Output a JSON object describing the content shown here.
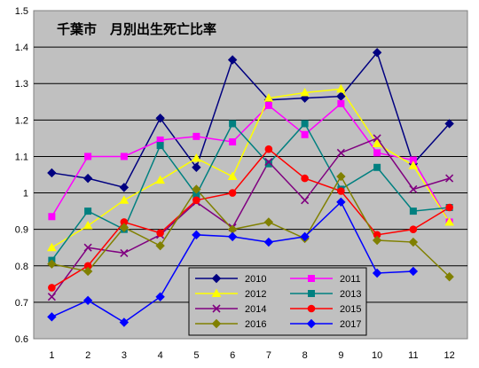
{
  "chart_data": {
    "type": "line",
    "title": "千葉市　月別出生死亡比率",
    "xlabel": "",
    "ylabel": "",
    "x": [
      1,
      2,
      3,
      4,
      5,
      6,
      7,
      8,
      9,
      10,
      11,
      12
    ],
    "x_tick_labels": [
      "1",
      "2",
      "3",
      "4",
      "5",
      "6",
      "7",
      "8",
      "9",
      "10",
      "11",
      "12"
    ],
    "ylim": [
      0.6,
      1.5
    ],
    "y_ticks": [
      0.6,
      0.7,
      0.8,
      0.9,
      1.0,
      1.1,
      1.2,
      1.3,
      1.4,
      1.5
    ],
    "y_tick_labels": [
      "0.6",
      "0.7",
      "0.8",
      "0.9",
      "1",
      "1.1",
      "1.2",
      "1.3",
      "1.4",
      "1.5"
    ],
    "grid": "horizontal",
    "plot_background": "#c0c0c0",
    "legend_position": "bottom-center",
    "series": [
      {
        "name": "2010",
        "color": "#000080",
        "marker": "diamond",
        "values": [
          1.055,
          1.04,
          1.015,
          1.205,
          1.07,
          1.365,
          1.255,
          1.26,
          1.265,
          1.385,
          1.08,
          1.19
        ]
      },
      {
        "name": "2011",
        "color": "#ff00ff",
        "marker": "square",
        "values": [
          0.935,
          1.1,
          1.1,
          1.145,
          1.155,
          1.14,
          1.24,
          1.16,
          1.245,
          1.11,
          1.09,
          0.92
        ]
      },
      {
        "name": "2012",
        "color": "#ffff00",
        "marker": "triangle",
        "values": [
          0.85,
          0.91,
          0.98,
          1.035,
          1.095,
          1.045,
          1.26,
          1.275,
          1.285,
          1.135,
          1.075,
          0.92
        ]
      },
      {
        "name": "2013",
        "color": "#008080",
        "marker": "square",
        "values": [
          0.815,
          0.95,
          0.9,
          1.13,
          0.995,
          1.19,
          1.08,
          1.19,
          1.01,
          1.07,
          0.95,
          0.96
        ]
      },
      {
        "name": "2014",
        "color": "#800080",
        "marker": "x",
        "values": [
          0.715,
          0.85,
          0.835,
          0.885,
          0.975,
          0.905,
          1.085,
          0.98,
          1.11,
          1.15,
          1.01,
          1.04
        ]
      },
      {
        "name": "2015",
        "color": "#ff0000",
        "marker": "circle",
        "values": [
          0.74,
          0.8,
          0.92,
          0.89,
          0.98,
          1.0,
          1.12,
          1.04,
          1.005,
          0.885,
          0.9,
          0.96
        ]
      },
      {
        "name": "2016",
        "color": "#808000",
        "marker": "diamond",
        "values": [
          0.805,
          0.785,
          0.905,
          0.855,
          1.01,
          0.9,
          0.92,
          0.875,
          1.045,
          0.87,
          0.865,
          0.77
        ]
      },
      {
        "name": "2017",
        "color": "#0000ff",
        "marker": "diamond",
        "values": [
          0.66,
          0.705,
          0.645,
          0.715,
          0.885,
          0.88,
          0.865,
          0.88,
          0.975,
          0.78,
          0.785,
          null
        ]
      }
    ]
  }
}
